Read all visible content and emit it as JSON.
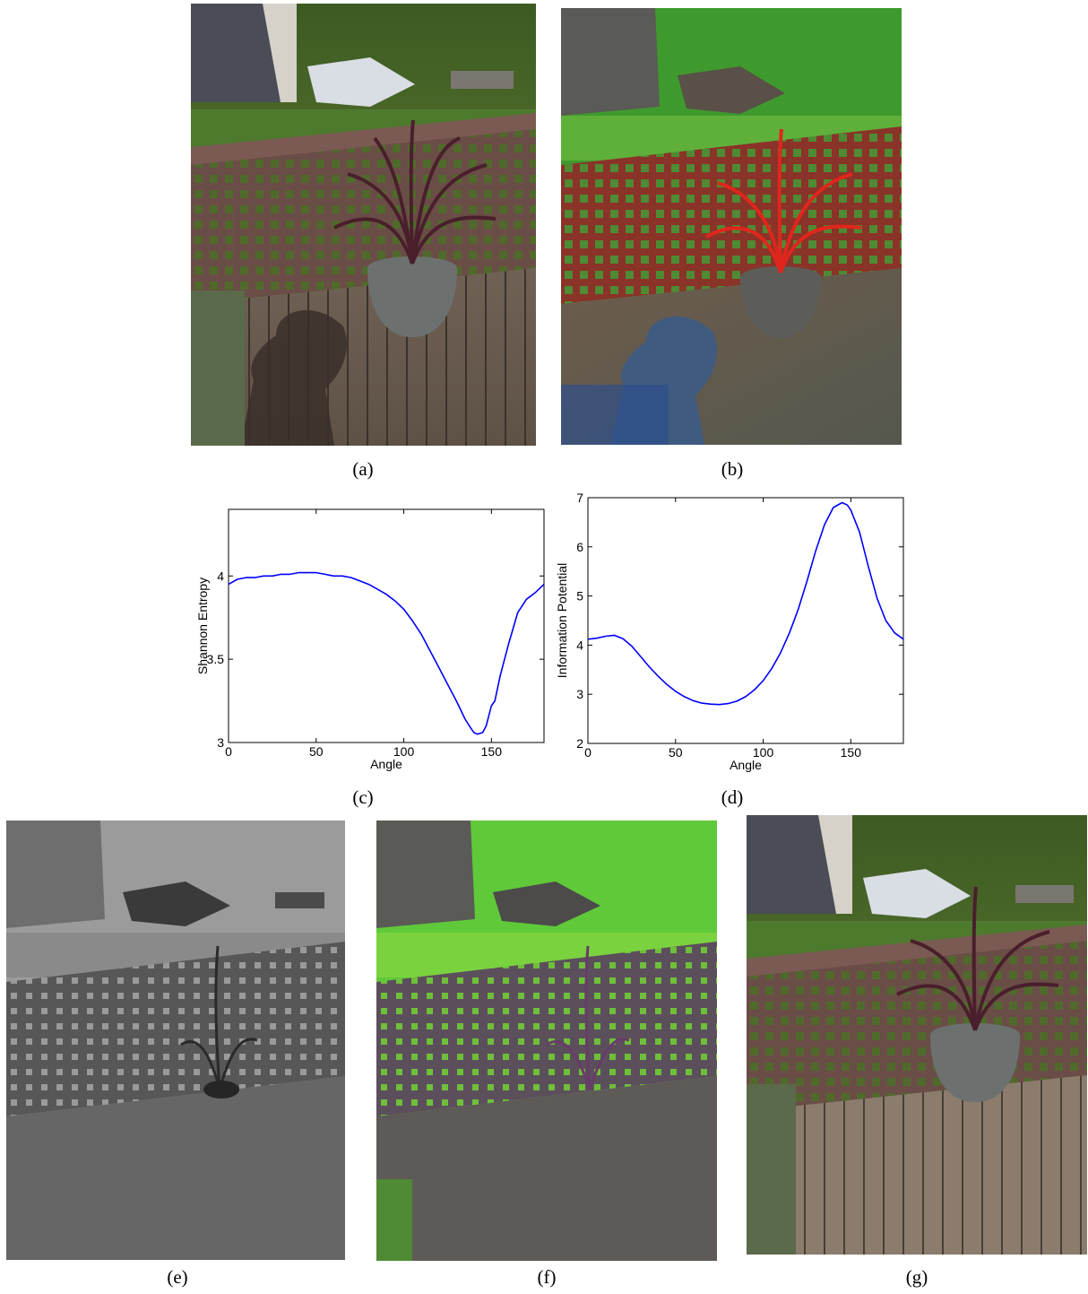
{
  "captions": {
    "a": "(a)",
    "b": "(b)",
    "c": "(c)",
    "d": "(d)",
    "e": "(e)",
    "f": "(f)",
    "g": "(g)"
  },
  "photos": {
    "a": "original color photo of a potted plant on a wooden deck with lattice railing and photographer's shadow",
    "b": "false-color chromaticity rendering (red lattice and plant, green foliage, blue shadow)",
    "e": "grayscale invariant image of the same scene",
    "f": "green/purple chromaticity image of the same scene",
    "g": "shadow-free color reconstruction of the deck scene"
  },
  "chart_data": [
    {
      "type": "line",
      "xlabel": "Angle",
      "ylabel": "Shannon Entropy",
      "xlim": [
        0,
        180
      ],
      "ylim": [
        3,
        4.4
      ],
      "xticks": [
        "0",
        "50",
        "100",
        "150"
      ],
      "yticks": [
        "3",
        "3.5",
        "4"
      ],
      "color": "#0000ff",
      "series": [
        {
          "x": [
            0,
            5,
            10,
            15,
            20,
            25,
            30,
            35,
            40,
            45,
            50,
            55,
            60,
            65,
            70,
            75,
            80,
            85,
            90,
            95,
            100,
            105,
            110,
            115,
            120,
            125,
            130,
            135,
            138,
            140,
            142,
            145,
            147,
            150,
            152,
            155,
            160,
            165,
            170,
            175,
            180
          ],
          "y": [
            3.95,
            3.98,
            3.99,
            3.99,
            4.0,
            4.0,
            4.01,
            4.01,
            4.02,
            4.02,
            4.02,
            4.01,
            4.0,
            4.0,
            3.99,
            3.97,
            3.95,
            3.92,
            3.89,
            3.85,
            3.8,
            3.73,
            3.65,
            3.55,
            3.45,
            3.35,
            3.25,
            3.14,
            3.09,
            3.06,
            3.05,
            3.06,
            3.1,
            3.22,
            3.25,
            3.4,
            3.6,
            3.78,
            3.86,
            3.9,
            3.95
          ]
        }
      ]
    },
    {
      "type": "line",
      "xlabel": "Angle",
      "ylabel": "Information Potential",
      "xlim": [
        0,
        180
      ],
      "ylim": [
        2,
        7
      ],
      "xticks": [
        "0",
        "50",
        "100",
        "150"
      ],
      "yticks": [
        "2",
        "3",
        "4",
        "5",
        "6",
        "7"
      ],
      "color": "#0000ff",
      "series": [
        {
          "x": [
            0,
            5,
            10,
            15,
            20,
            25,
            30,
            35,
            40,
            45,
            50,
            55,
            60,
            65,
            70,
            75,
            80,
            85,
            90,
            95,
            100,
            105,
            110,
            115,
            120,
            125,
            130,
            135,
            140,
            145,
            148,
            150,
            155,
            160,
            165,
            170,
            175,
            180
          ],
          "y": [
            4.12,
            4.14,
            4.18,
            4.2,
            4.13,
            3.98,
            3.77,
            3.56,
            3.37,
            3.2,
            3.06,
            2.95,
            2.87,
            2.82,
            2.8,
            2.79,
            2.81,
            2.86,
            2.95,
            3.09,
            3.28,
            3.53,
            3.85,
            4.25,
            4.73,
            5.3,
            5.92,
            6.45,
            6.8,
            6.9,
            6.85,
            6.75,
            6.3,
            5.6,
            4.95,
            4.5,
            4.25,
            4.12
          ]
        }
      ]
    }
  ]
}
